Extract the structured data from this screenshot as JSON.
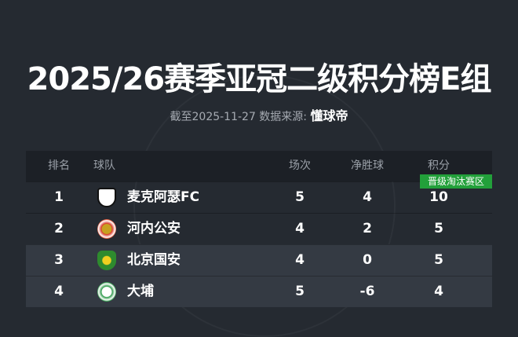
{
  "title": "2025/26赛季亚冠二级积分榜E组",
  "subtitle": {
    "prefix": "截至2025-11-27 数据来源:",
    "source": "懂球帝"
  },
  "table": {
    "headers": {
      "rank": "排名",
      "team": "球队",
      "played": "场次",
      "goal_diff": "净胜球",
      "points": "积分"
    },
    "zone_label": "晋级淘汰赛区",
    "colors": {
      "promotion": "#22a03a",
      "normal": "#343a43"
    },
    "rows": [
      {
        "rank": "1",
        "team": "麦克阿瑟FC",
        "played": "5",
        "goal_diff": "4",
        "points": "10",
        "zone": "promotion",
        "logo": "macarthur-fc-logo"
      },
      {
        "rank": "2",
        "team": "河内公安",
        "played": "4",
        "goal_diff": "2",
        "points": "5",
        "zone": "promotion",
        "logo": "cong-an-ha-noi-logo"
      },
      {
        "rank": "3",
        "team": "北京国安",
        "played": "4",
        "goal_diff": "0",
        "points": "5",
        "zone": "normal",
        "logo": "beijing-guoan-logo"
      },
      {
        "rank": "4",
        "team": "大埔",
        "played": "5",
        "goal_diff": "-6",
        "points": "4",
        "zone": "normal",
        "logo": "tai-po-logo"
      }
    ]
  }
}
